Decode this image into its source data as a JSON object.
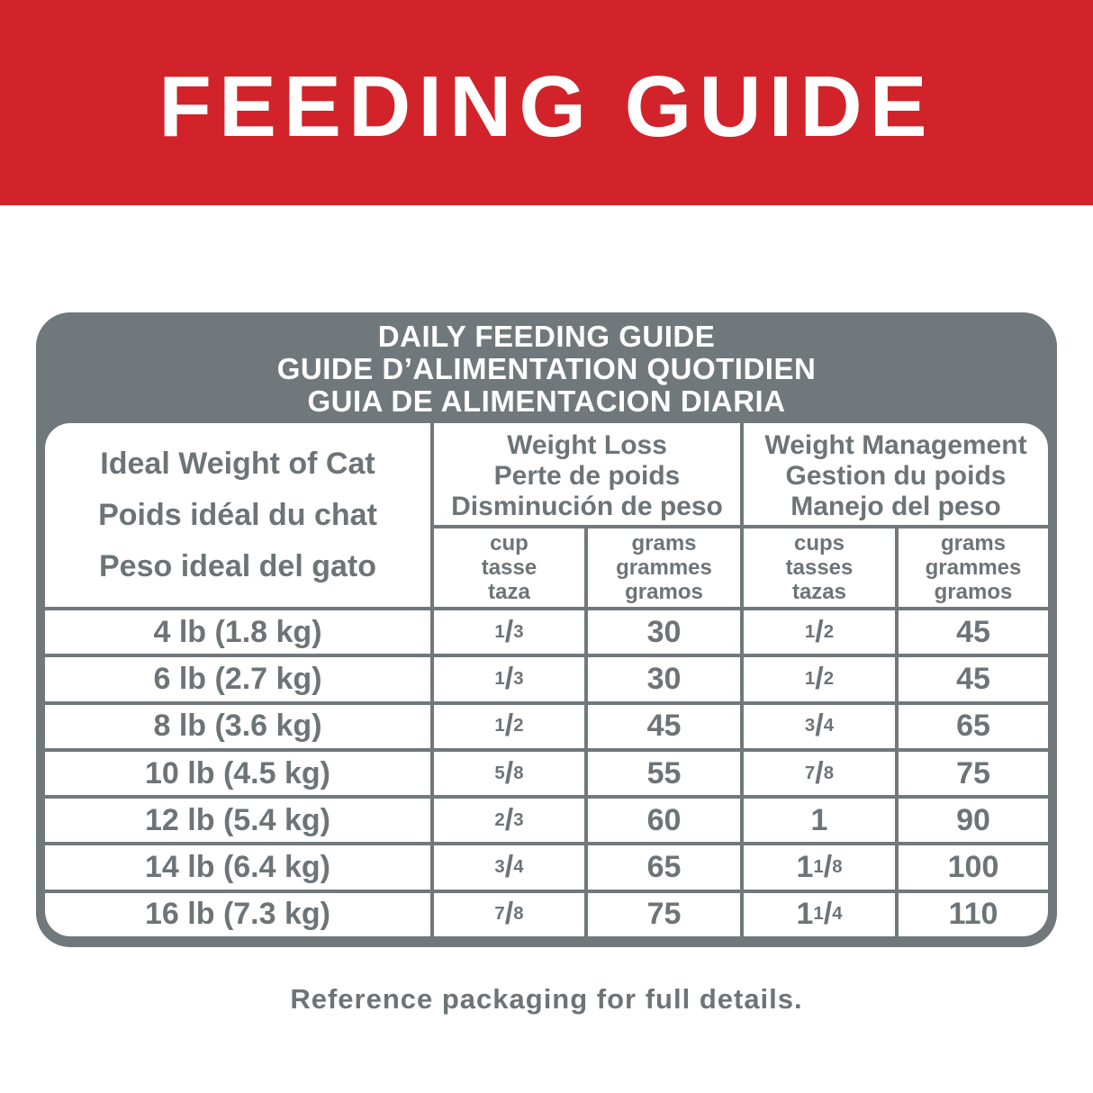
{
  "colors": {
    "red": "#d2232a",
    "gray": "#70787b",
    "ink": "#6d7478"
  },
  "banner": {
    "title": "FEEDING GUIDE"
  },
  "card": {
    "title_lines": [
      "DAILY FEEDING GUIDE",
      "GUIDE D’ALIMENTATION QUOTIDIEN",
      "GUIA DE ALIMENTACION DIARIA"
    ]
  },
  "table": {
    "row_header_lines": [
      "Ideal Weight of Cat",
      "Poids idéal du chat",
      "Peso ideal del gato"
    ],
    "weight_loss": {
      "title_lines": [
        "Weight Loss",
        "Perte de poids",
        "Disminución de peso"
      ],
      "cup_lines": [
        "cup",
        "tasse",
        "taza"
      ],
      "grams_lines": [
        "grams",
        "grammes",
        "gramos"
      ]
    },
    "weight_management": {
      "title_lines": [
        "Weight Management",
        "Gestion du poids",
        "Manejo del peso"
      ],
      "cups_lines": [
        "cups",
        "tasses",
        "tazas"
      ],
      "grams_lines": [
        "grams",
        "grammes",
        "gramos"
      ]
    },
    "rows": [
      {
        "weight": "4 lb (1.8 kg)",
        "loss_cup": "1/3",
        "loss_grams": "30",
        "mgmt_cups": "1/2",
        "mgmt_grams": "45"
      },
      {
        "weight": "6 lb (2.7 kg)",
        "loss_cup": "1/3",
        "loss_grams": "30",
        "mgmt_cups": "1/2",
        "mgmt_grams": "45"
      },
      {
        "weight": "8 lb (3.6 kg)",
        "loss_cup": "1/2",
        "loss_grams": "45",
        "mgmt_cups": "3/4",
        "mgmt_grams": "65"
      },
      {
        "weight": "10 lb (4.5 kg)",
        "loss_cup": "5/8",
        "loss_grams": "55",
        "mgmt_cups": "7/8",
        "mgmt_grams": "75"
      },
      {
        "weight": "12 lb (5.4 kg)",
        "loss_cup": "2/3",
        "loss_grams": "60",
        "mgmt_cups": "1",
        "mgmt_grams": "90"
      },
      {
        "weight": "14 lb (6.4 kg)",
        "loss_cup": "3/4",
        "loss_grams": "65",
        "mgmt_cups": "1 1/8",
        "mgmt_grams": "100"
      },
      {
        "weight": "16 lb (7.3 kg)",
        "loss_cup": "7/8",
        "loss_grams": "75",
        "mgmt_cups": "1 1/4",
        "mgmt_grams": "110"
      }
    ]
  },
  "footer": {
    "note": "Reference packaging for full details."
  }
}
